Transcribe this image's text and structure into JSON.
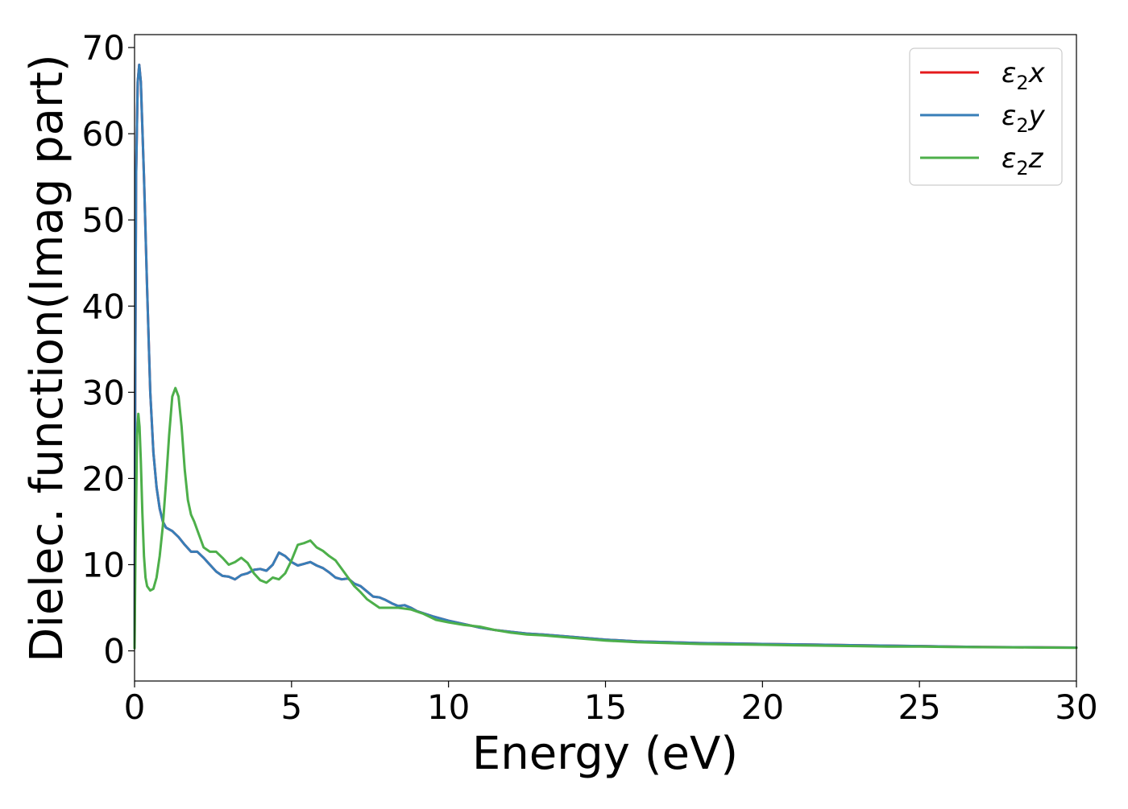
{
  "chart_data": {
    "type": "line",
    "xlabel": "Energy (eV)",
    "ylabel": "Dielec. function(Imag part)",
    "xlim": [
      0,
      30
    ],
    "ylim": [
      -3.5,
      71.5
    ],
    "xticks": [
      0,
      5,
      10,
      15,
      20,
      25,
      30
    ],
    "yticks": [
      0,
      10,
      20,
      30,
      40,
      50,
      60,
      70
    ],
    "grid": false,
    "legend_position": "top-right",
    "series": [
      {
        "name": "ε2x",
        "legend_base": "ε",
        "legend_sub": "2",
        "legend_tail": "x",
        "color": "#e41a1c",
        "x": [
          0,
          0.02,
          0.05,
          0.1,
          0.15,
          0.2,
          0.3,
          0.4,
          0.5,
          0.6,
          0.7,
          0.8,
          0.9,
          1.0,
          1.2,
          1.4,
          1.6,
          1.8,
          2.0,
          2.2,
          2.4,
          2.6,
          2.8,
          3.0,
          3.2,
          3.4,
          3.6,
          3.8,
          4.0,
          4.2,
          4.4,
          4.6,
          4.8,
          5.0,
          5.2,
          5.4,
          5.6,
          5.8,
          6.0,
          6.2,
          6.4,
          6.6,
          6.8,
          7.0,
          7.2,
          7.4,
          7.6,
          7.8,
          8.0,
          8.2,
          8.4,
          8.6,
          8.8,
          9.0,
          9.5,
          10.0,
          10.5,
          11.0,
          11.5,
          12.0,
          12.5,
          13.0,
          14.0,
          15.0,
          16.0,
          17.0,
          18.0,
          19.0,
          20.0,
          21.0,
          22.0,
          23.0,
          24.0,
          25.0,
          26.0,
          27.0,
          28.0,
          29.0,
          30.0
        ],
        "y": [
          0.5,
          30,
          55,
          66,
          68,
          66,
          55,
          42,
          30,
          23,
          19,
          16.5,
          15,
          14.3,
          13.9,
          13.2,
          12.3,
          11.5,
          11.5,
          10.8,
          10,
          9.2,
          8.7,
          8.6,
          8.3,
          8.8,
          9.0,
          9.4,
          9.5,
          9.3,
          10.0,
          11.4,
          11.0,
          10.3,
          9.9,
          10.1,
          10.3,
          9.9,
          9.6,
          9.1,
          8.5,
          8.3,
          8.4,
          7.8,
          7.5,
          6.9,
          6.3,
          6.2,
          5.9,
          5.5,
          5.2,
          5.3,
          5.0,
          4.6,
          4.0,
          3.5,
          3.1,
          2.7,
          2.4,
          2.2,
          2.0,
          1.9,
          1.6,
          1.3,
          1.1,
          1.0,
          0.9,
          0.85,
          0.8,
          0.75,
          0.7,
          0.65,
          0.6,
          0.55,
          0.5,
          0.45,
          0.42,
          0.4,
          0.38
        ]
      },
      {
        "name": "ε2y",
        "legend_base": "ε",
        "legend_sub": "2",
        "legend_tail": "y",
        "color": "#377eb8",
        "x": [
          0,
          0.02,
          0.05,
          0.1,
          0.15,
          0.2,
          0.3,
          0.4,
          0.5,
          0.6,
          0.7,
          0.8,
          0.9,
          1.0,
          1.2,
          1.4,
          1.6,
          1.8,
          2.0,
          2.2,
          2.4,
          2.6,
          2.8,
          3.0,
          3.2,
          3.4,
          3.6,
          3.8,
          4.0,
          4.2,
          4.4,
          4.6,
          4.8,
          5.0,
          5.2,
          5.4,
          5.6,
          5.8,
          6.0,
          6.2,
          6.4,
          6.6,
          6.8,
          7.0,
          7.2,
          7.4,
          7.6,
          7.8,
          8.0,
          8.2,
          8.4,
          8.6,
          8.8,
          9.0,
          9.5,
          10.0,
          10.5,
          11.0,
          11.5,
          12.0,
          12.5,
          13.0,
          14.0,
          15.0,
          16.0,
          17.0,
          18.0,
          19.0,
          20.0,
          21.0,
          22.0,
          23.0,
          24.0,
          25.0,
          26.0,
          27.0,
          28.0,
          29.0,
          30.0
        ],
        "y": [
          0.5,
          30,
          55,
          66,
          68,
          66,
          55,
          42,
          30,
          23,
          19,
          16.5,
          15,
          14.3,
          13.9,
          13.2,
          12.3,
          11.5,
          11.5,
          10.8,
          10,
          9.2,
          8.7,
          8.6,
          8.3,
          8.8,
          9.0,
          9.4,
          9.5,
          9.3,
          10.0,
          11.4,
          11.0,
          10.3,
          9.9,
          10.1,
          10.3,
          9.9,
          9.6,
          9.1,
          8.5,
          8.3,
          8.4,
          7.8,
          7.5,
          6.9,
          6.3,
          6.2,
          5.9,
          5.5,
          5.2,
          5.3,
          5.0,
          4.6,
          4.0,
          3.5,
          3.1,
          2.7,
          2.4,
          2.2,
          2.0,
          1.9,
          1.6,
          1.3,
          1.1,
          1.0,
          0.9,
          0.85,
          0.8,
          0.75,
          0.7,
          0.65,
          0.6,
          0.55,
          0.5,
          0.45,
          0.42,
          0.4,
          0.38
        ]
      },
      {
        "name": "ε2z",
        "legend_base": "ε",
        "legend_sub": "2",
        "legend_tail": "z",
        "color": "#4daf4a",
        "x": [
          0,
          0.03,
          0.08,
          0.12,
          0.16,
          0.2,
          0.25,
          0.3,
          0.35,
          0.4,
          0.5,
          0.6,
          0.7,
          0.8,
          0.9,
          1.0,
          1.1,
          1.2,
          1.3,
          1.4,
          1.5,
          1.6,
          1.7,
          1.8,
          1.9,
          2.0,
          2.2,
          2.4,
          2.6,
          2.8,
          3.0,
          3.2,
          3.4,
          3.6,
          3.8,
          4.0,
          4.2,
          4.4,
          4.6,
          4.8,
          5.0,
          5.2,
          5.4,
          5.6,
          5.8,
          6.0,
          6.2,
          6.4,
          6.6,
          6.8,
          7.0,
          7.2,
          7.4,
          7.6,
          7.8,
          8.0,
          8.4,
          8.8,
          9.2,
          9.6,
          10.0,
          10.5,
          11.0,
          11.5,
          12.0,
          12.5,
          13.0,
          14.0,
          15.0,
          16.0,
          17.0,
          18.0,
          19.0,
          20.0,
          21.0,
          22.0,
          23.0,
          24.0,
          25.0,
          26.0,
          27.0,
          28.0,
          29.0,
          30.0
        ],
        "y": [
          0.3,
          12,
          25,
          27.5,
          26,
          22,
          16,
          11,
          8.5,
          7.5,
          7.0,
          7.2,
          8.5,
          11.0,
          14.5,
          19.5,
          25.0,
          29.5,
          30.5,
          29.5,
          26.0,
          21.0,
          17.5,
          15.8,
          15.0,
          14.0,
          12.0,
          11.5,
          11.5,
          10.8,
          10.0,
          10.3,
          10.8,
          10.2,
          9.0,
          8.2,
          7.9,
          8.5,
          8.3,
          9.0,
          10.5,
          12.3,
          12.5,
          12.8,
          12.0,
          11.6,
          11.0,
          10.5,
          9.5,
          8.5,
          7.5,
          6.8,
          6.0,
          5.5,
          5.0,
          5.0,
          5.0,
          4.8,
          4.3,
          3.6,
          3.3,
          3.0,
          2.8,
          2.4,
          2.1,
          1.9,
          1.8,
          1.5,
          1.2,
          1.0,
          0.9,
          0.8,
          0.75,
          0.7,
          0.65,
          0.6,
          0.55,
          0.5,
          0.5,
          0.45,
          0.42,
          0.4,
          0.38,
          0.36
        ]
      }
    ]
  }
}
